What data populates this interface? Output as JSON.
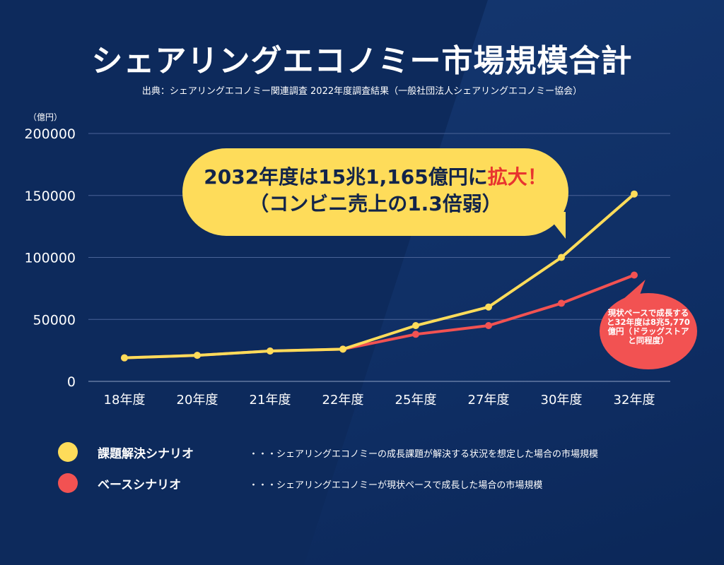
{
  "title": "シェアリングエコノミー市場規模合計",
  "source": "出典：シェアリングエコノミー関連調査 2022年度調査結果（一般社団法人シェアリングエコノミー協会）",
  "callout": {
    "line1_a": "2032年度は15兆1,165億円に",
    "line1_b": "拡大！",
    "line2": "（コンビニ売上の1.3倍弱）"
  },
  "red_callout": "現状ペースで成長すると32年度は8兆5,770億円（ドラッグストアと同程度）",
  "legend": [
    {
      "label": "課題解決シナリオ",
      "desc": "・・・シェアリングエコノミーの成長課題が解決する状況を想定した場合の市場規模",
      "color": "#fedc5a"
    },
    {
      "label": "ベースシナリオ",
      "desc": "・・・シェアリングエコノミーが現状ペースで成長した場合の市場規模",
      "color": "#f25252"
    }
  ],
  "chart_data": {
    "type": "line",
    "title": "シェアリングエコノミー市場規模合計",
    "ylabel": "（億円）",
    "ylim": [
      0,
      200000
    ],
    "yticks": [
      0,
      50000,
      100000,
      150000,
      200000
    ],
    "categories": [
      "18年度",
      "20年度",
      "21年度",
      "22年度",
      "25年度",
      "27年度",
      "30年度",
      "32年度"
    ],
    "series": [
      {
        "name": "課題解決シナリオ",
        "color": "#fedc5a",
        "values": [
          19000,
          21000,
          24500,
          26000,
          45000,
          60000,
          100000,
          151165
        ]
      },
      {
        "name": "ベースシナリオ",
        "color": "#f25252",
        "values": [
          19000,
          21000,
          24500,
          26000,
          38000,
          45000,
          63000,
          85770
        ]
      }
    ],
    "grid": true
  }
}
